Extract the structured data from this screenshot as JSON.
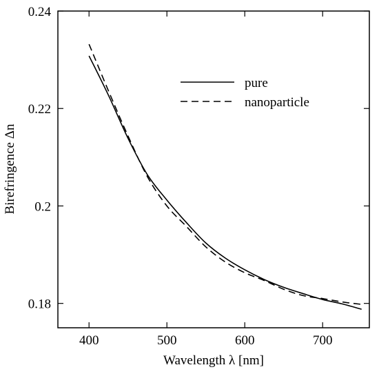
{
  "chart_data": {
    "type": "line",
    "title": "",
    "xlabel": "Wavelength λ [nm]",
    "ylabel": "Birefringence Δn",
    "xlim": [
      360,
      760
    ],
    "ylim": [
      0.175,
      0.24
    ],
    "xticks": [
      400,
      500,
      600,
      700
    ],
    "xtick_labels": [
      "400",
      "500",
      "600",
      "700"
    ],
    "yticks": [
      0.18,
      0.2,
      0.22,
      0.24
    ],
    "ytick_labels": [
      "0.18",
      "0.2",
      "0.22",
      "0.24"
    ],
    "grid": false,
    "legend_position": "top-right",
    "series": [
      {
        "name": "pure",
        "style": "solid",
        "color": "#000000",
        "x": [
          400,
          425,
          450,
          475,
          500,
          525,
          550,
          575,
          600,
          625,
          650,
          675,
          700,
          725,
          750
        ],
        "y": [
          0.2308,
          0.2227,
          0.2139,
          0.2064,
          0.2012,
          0.1966,
          0.1924,
          0.1893,
          0.1869,
          0.1849,
          0.1833,
          0.182,
          0.1808,
          0.1799,
          0.1788
        ]
      },
      {
        "name": "nanoparticle",
        "style": "dashed",
        "color": "#000000",
        "x": [
          400,
          425,
          450,
          475,
          500,
          525,
          550,
          575,
          600,
          625,
          650,
          675,
          700,
          725,
          750
        ],
        "y": [
          0.2332,
          0.2236,
          0.2144,
          0.206,
          0.2,
          0.1958,
          0.1916,
          0.1885,
          0.1863,
          0.1847,
          0.1829,
          0.1816,
          0.181,
          0.1803,
          0.1798
        ]
      }
    ]
  }
}
